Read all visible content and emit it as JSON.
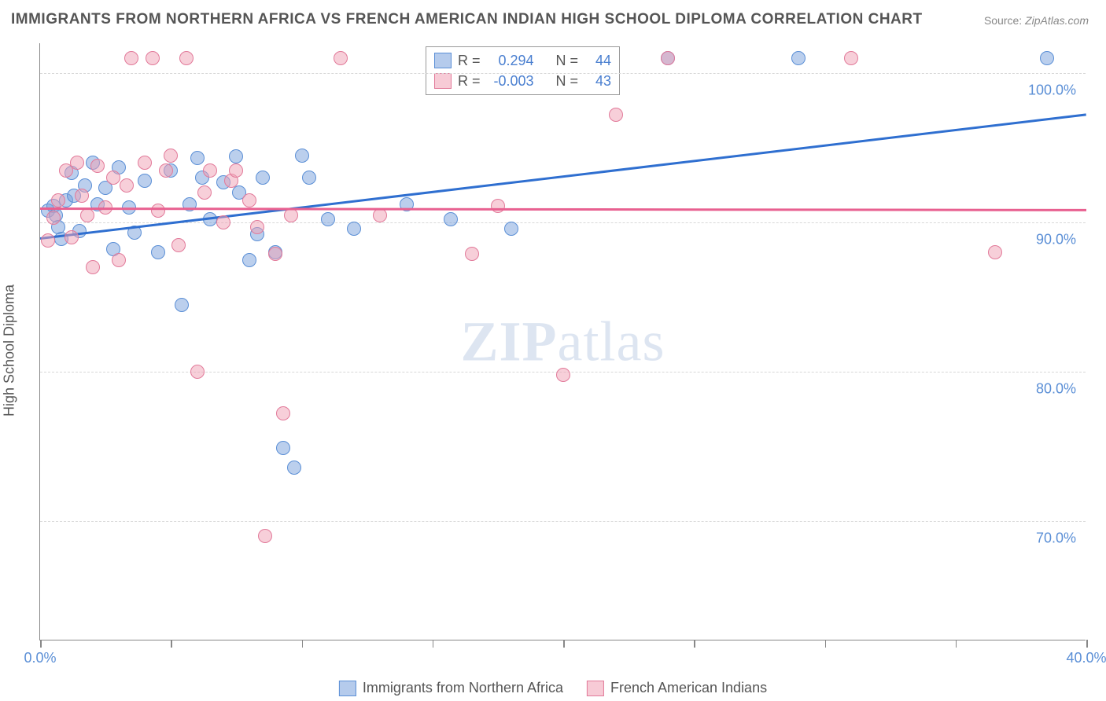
{
  "title": "IMMIGRANTS FROM NORTHERN AFRICA VS FRENCH AMERICAN INDIAN HIGH SCHOOL DIPLOMA CORRELATION CHART",
  "source_label": "Source:",
  "source_value": "ZipAtlas.com",
  "watermark_zip": "ZIP",
  "watermark_atlas": "atlas",
  "y_axis_label": "High School Diploma",
  "chart": {
    "type": "scatter",
    "xlim": [
      0,
      40
    ],
    "ylim": [
      62,
      102
    ],
    "x_ticks": [
      0,
      5,
      10,
      15,
      20,
      25,
      30,
      35,
      40
    ],
    "x_tick_labels": {
      "0": "0.0%",
      "40": "40.0%"
    },
    "y_ticks": [
      70,
      80,
      90,
      100
    ],
    "y_tick_labels": [
      "70.0%",
      "80.0%",
      "90.0%",
      "100.0%"
    ],
    "grid_color": "#d8d8d8",
    "axis_color": "#888888",
    "background_color": "#ffffff",
    "tick_label_color": "#5b8fd6",
    "axis_label_color": "#555555",
    "point_radius": 9,
    "point_opacity": 0.55,
    "series": [
      {
        "name": "Immigrants from Northern Africa",
        "color_fill": "rgba(120,160,220,0.5)",
        "color_stroke": "#5b8fd6",
        "r": 0.294,
        "n": 44,
        "trend": {
          "x1": 0,
          "y1": 89.0,
          "x2": 40,
          "y2": 97.3,
          "color": "#2f6fd0",
          "width": 2.5
        },
        "points": [
          [
            0.3,
            90.8
          ],
          [
            0.5,
            91.1
          ],
          [
            0.6,
            90.5
          ],
          [
            0.7,
            89.7
          ],
          [
            0.8,
            88.9
          ],
          [
            1.0,
            91.5
          ],
          [
            1.2,
            93.3
          ],
          [
            1.3,
            91.8
          ],
          [
            1.5,
            89.4
          ],
          [
            1.7,
            92.5
          ],
          [
            2.0,
            94.0
          ],
          [
            2.2,
            91.2
          ],
          [
            2.5,
            92.3
          ],
          [
            2.8,
            88.2
          ],
          [
            3.0,
            93.7
          ],
          [
            3.4,
            91.0
          ],
          [
            3.6,
            89.3
          ],
          [
            4.0,
            92.8
          ],
          [
            4.5,
            88.0
          ],
          [
            5.0,
            93.5
          ],
          [
            5.4,
            84.5
          ],
          [
            5.7,
            91.2
          ],
          [
            6.0,
            94.3
          ],
          [
            6.2,
            93.0
          ],
          [
            6.5,
            90.2
          ],
          [
            7.0,
            92.7
          ],
          [
            7.5,
            94.4
          ],
          [
            7.6,
            92.0
          ],
          [
            8.0,
            87.5
          ],
          [
            8.3,
            89.2
          ],
          [
            8.5,
            93.0
          ],
          [
            9.0,
            88.0
          ],
          [
            9.3,
            74.9
          ],
          [
            9.7,
            73.6
          ],
          [
            10.0,
            94.5
          ],
          [
            10.3,
            93.0
          ],
          [
            11.0,
            90.2
          ],
          [
            12.0,
            89.6
          ],
          [
            14.0,
            91.2
          ],
          [
            15.7,
            90.2
          ],
          [
            18.0,
            89.6
          ],
          [
            24.0,
            101.0
          ],
          [
            29.0,
            101.0
          ],
          [
            38.5,
            101.0
          ]
        ]
      },
      {
        "name": "French American Indians",
        "color_fill": "rgba(240,160,180,0.5)",
        "color_stroke": "#e27a9a",
        "r": -0.003,
        "n": 43,
        "trend": {
          "x1": 0,
          "y1": 91.0,
          "x2": 40,
          "y2": 90.9,
          "color": "#e86090",
          "width": 2.5
        },
        "points": [
          [
            0.3,
            88.8
          ],
          [
            0.5,
            90.3
          ],
          [
            0.7,
            91.5
          ],
          [
            1.0,
            93.5
          ],
          [
            1.2,
            89.0
          ],
          [
            1.4,
            94.0
          ],
          [
            1.6,
            91.8
          ],
          [
            1.8,
            90.5
          ],
          [
            2.0,
            87.0
          ],
          [
            2.2,
            93.8
          ],
          [
            2.5,
            91.0
          ],
          [
            2.8,
            93.0
          ],
          [
            3.0,
            87.5
          ],
          [
            3.3,
            92.5
          ],
          [
            3.5,
            101.0
          ],
          [
            4.0,
            94.0
          ],
          [
            4.3,
            101.0
          ],
          [
            4.5,
            90.8
          ],
          [
            4.8,
            93.5
          ],
          [
            5.0,
            94.5
          ],
          [
            5.3,
            88.5
          ],
          [
            5.6,
            101.0
          ],
          [
            6.0,
            80.0
          ],
          [
            6.3,
            92.0
          ],
          [
            6.5,
            93.5
          ],
          [
            7.0,
            90.0
          ],
          [
            7.3,
            92.8
          ],
          [
            7.5,
            93.5
          ],
          [
            8.0,
            91.5
          ],
          [
            8.3,
            89.7
          ],
          [
            8.6,
            69.0
          ],
          [
            9.0,
            87.9
          ],
          [
            9.3,
            77.2
          ],
          [
            9.6,
            90.5
          ],
          [
            11.5,
            101.0
          ],
          [
            13.0,
            90.5
          ],
          [
            16.5,
            87.9
          ],
          [
            17.5,
            91.1
          ],
          [
            20.0,
            79.8
          ],
          [
            22.0,
            97.2
          ],
          [
            24.0,
            101.0
          ],
          [
            31.0,
            101.0
          ],
          [
            36.5,
            88.0
          ]
        ]
      }
    ]
  },
  "stats_legend": {
    "r_label": "R =",
    "n_label": "N ="
  },
  "bottom_legend": [
    {
      "swatch": "blue",
      "label": "Immigrants from Northern Africa"
    },
    {
      "swatch": "pink",
      "label": "French American Indians"
    }
  ]
}
